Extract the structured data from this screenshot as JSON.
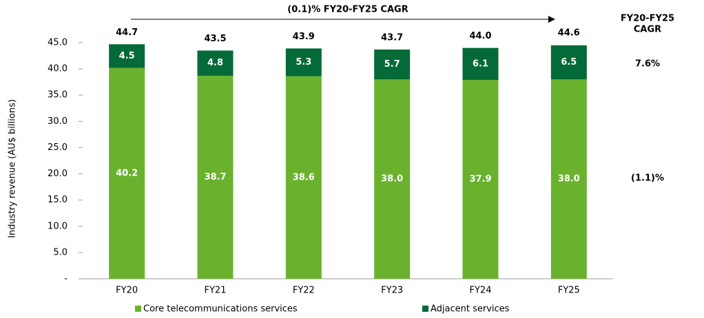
{
  "chart_data": {
    "type": "stacked_bar",
    "y_axis_label": "Industry revenue (AU$ billions)",
    "categories": [
      "FY20",
      "FY21",
      "FY22",
      "FY23",
      "FY24",
      "FY25"
    ],
    "series": [
      {
        "name": "Core telecommunications services",
        "color": "#6ab22e",
        "values": [
          40.2,
          38.7,
          38.6,
          38,
          37.9,
          38
        ],
        "value_labels": [
          "40.2",
          "38.7",
          "38.6",
          "38.0",
          "37.9",
          "38.0"
        ]
      },
      {
        "name": "Adjacent services",
        "color": "#046a38",
        "values": [
          4.5,
          4.8,
          5.3,
          5.7,
          6.1,
          6.5
        ],
        "value_labels": [
          "4.5",
          "4.8",
          "5.3",
          "5.7",
          "6.1",
          "6.5"
        ]
      }
    ],
    "totals": {
      "values": [
        44.7,
        43.5,
        43.9,
        43.7,
        44,
        44.6
      ],
      "value_labels": [
        "44.7",
        "43.5",
        "43.9",
        "43.7",
        "44.0",
        "44.6"
      ]
    },
    "ylim": [
      0,
      45
    ],
    "yticks": [
      {
        "value": 0,
        "label": "-"
      },
      {
        "value": 5,
        "label": "5.0"
      },
      {
        "value": 10,
        "label": "10.0"
      },
      {
        "value": 15,
        "label": "15.0"
      },
      {
        "value": 20,
        "label": "20.0"
      },
      {
        "value": 25,
        "label": "25.0"
      },
      {
        "value": 30,
        "label": "30.0"
      },
      {
        "value": 35,
        "label": "35.0"
      },
      {
        "value": 40,
        "label": "40.0"
      },
      {
        "value": 45,
        "label": "45.0"
      }
    ],
    "annotations": {
      "arrow_text": "(0.1)% FY20-FY25 CAGR",
      "cagr_header": [
        "FY20-FY25",
        "CAGR"
      ],
      "cagr_values": [
        "7.6%",
        "(1.1)%"
      ]
    }
  }
}
